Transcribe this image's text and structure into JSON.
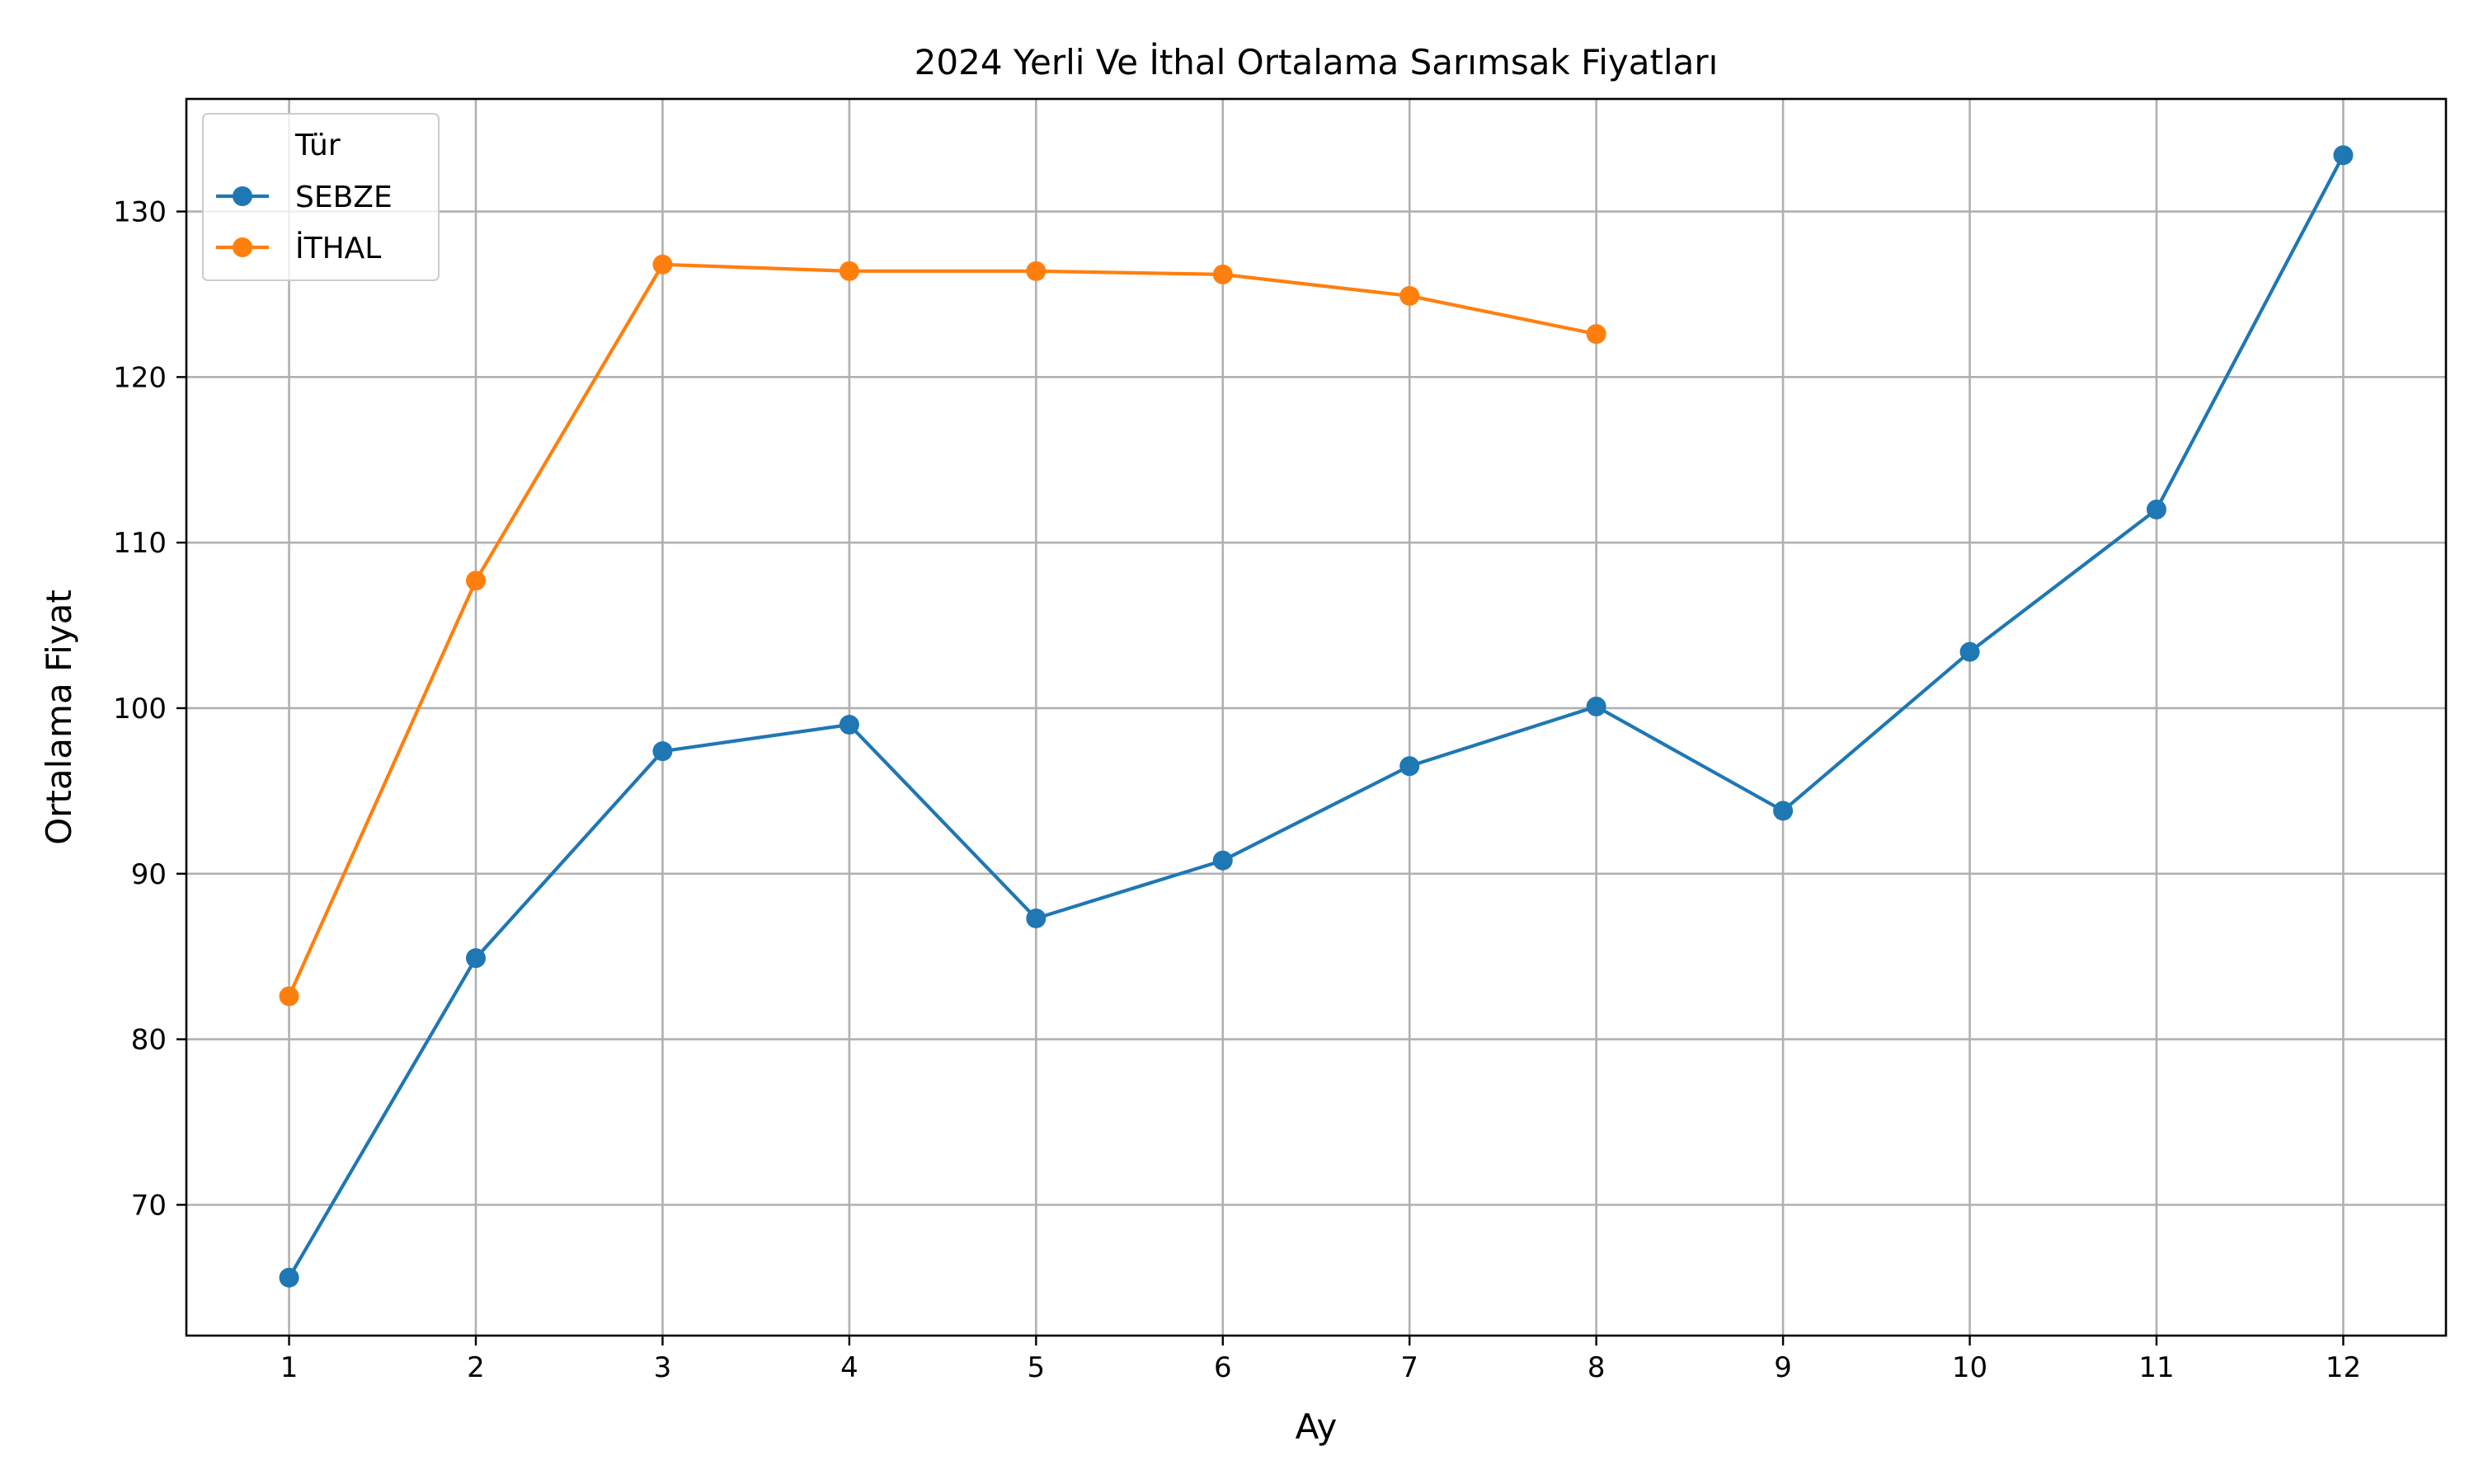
{
  "chart_data": {
    "type": "line",
    "title": "2024 Yerli Ve İthal Ortalama Sarımsak Fiyatları",
    "xlabel": "Ay",
    "ylabel": "Ortalama Fiyat",
    "x_ticks": [
      "1",
      "2",
      "3",
      "4",
      "5",
      "6",
      "7",
      "8",
      "9",
      "10",
      "11",
      "12"
    ],
    "y_ticks": [
      "70",
      "80",
      "90",
      "100",
      "110",
      "120",
      "130"
    ],
    "xlim": [
      0.45,
      12.55
    ],
    "ylim": [
      62.1,
      136.8
    ],
    "grid": true,
    "legend": {
      "title": "Tür",
      "placement": "top-left"
    },
    "series": [
      {
        "name": "SEBZE",
        "color": "#1f77b4",
        "marker": "circle",
        "x": [
          1,
          2,
          3,
          4,
          5,
          6,
          7,
          8,
          9,
          10,
          11,
          12
        ],
        "values": [
          65.6,
          84.9,
          97.4,
          99.0,
          87.3,
          90.8,
          96.5,
          100.1,
          93.8,
          103.4,
          112.0,
          133.4
        ]
      },
      {
        "name": "İTHAL",
        "color": "#ff7f0e",
        "marker": "circle",
        "x": [
          1,
          2,
          3,
          4,
          5,
          6,
          7,
          8
        ],
        "values": [
          82.6,
          107.7,
          126.8,
          126.4,
          126.4,
          126.2,
          124.9,
          122.6
        ]
      }
    ]
  }
}
